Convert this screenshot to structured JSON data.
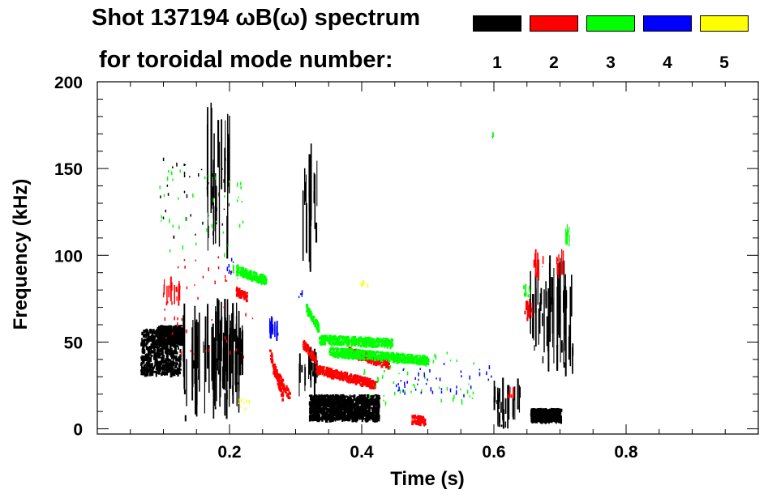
{
  "header": {
    "title_line1": "Shot 137194 ωB(ω) spectrum",
    "title_line2": "for toroidal mode number:"
  },
  "legend": [
    {
      "mode": "1",
      "color": "#000000"
    },
    {
      "mode": "2",
      "color": "#ff0000"
    },
    {
      "mode": "3",
      "color": "#00ff00"
    },
    {
      "mode": "4",
      "color": "#0000ff"
    },
    {
      "mode": "5",
      "color": "#ffff00"
    }
  ],
  "chart_data": {
    "type": "scatter",
    "title": "Shot 137194 ωB(ω) spectrum for toroidal mode number: 1 2 3 4 5",
    "xlabel": "Time (s)",
    "ylabel": "Frequency (kHz)",
    "xlim": [
      0.0,
      1.0
    ],
    "ylim": [
      -3,
      200
    ],
    "x_ticks": [
      0.2,
      0.4,
      0.6,
      0.8
    ],
    "x_tick_labels": [
      "0.2",
      "0.4",
      "0.6",
      "0.8"
    ],
    "y_ticks": [
      0,
      50,
      100,
      150,
      200
    ],
    "y_tick_labels": [
      "0",
      "50",
      "100",
      "150",
      "200"
    ],
    "legend_placement": "top",
    "series": [
      {
        "name": "n=1",
        "color": "#000000",
        "segments": [
          {
            "kind": "blob",
            "t": [
              0.065,
              0.125
            ],
            "f": [
              32,
              58
            ]
          },
          {
            "kind": "blob",
            "t": [
              0.09,
              0.13
            ],
            "f": [
              50,
              60
            ]
          },
          {
            "kind": "vlines",
            "t": [
              0.13,
              0.215
            ],
            "f": [
              3,
              75
            ]
          },
          {
            "kind": "vlines",
            "t": [
              0.175,
              0.215
            ],
            "f": [
              10,
              80
            ]
          },
          {
            "kind": "vlines",
            "t": [
              0.215,
              0.22
            ],
            "f": [
              30,
              60
            ]
          },
          {
            "kind": "vlines",
            "t": [
              0.165,
              0.2
            ],
            "f": [
              95,
              190
            ]
          },
          {
            "kind": "blob",
            "t": [
              0.32,
              0.425
            ],
            "f": [
              6,
              20
            ]
          },
          {
            "kind": "vlines",
            "t": [
              0.305,
              0.335
            ],
            "f": [
              18,
              48
            ]
          },
          {
            "kind": "vlines",
            "t": [
              0.31,
              0.335
            ],
            "f": [
              90,
              165
            ]
          },
          {
            "kind": "blob",
            "t": [
              0.655,
              0.7
            ],
            "f": [
              5,
              12
            ]
          },
          {
            "kind": "vlines",
            "t": [
              0.655,
              0.72
            ],
            "f": [
              30,
              100
            ]
          },
          {
            "kind": "vlines",
            "t": [
              0.6,
              0.64
            ],
            "f": [
              0,
              30
            ]
          },
          {
            "kind": "scatter",
            "t": [
              0.09,
              0.2
            ],
            "f": [
              110,
              160
            ]
          }
        ]
      },
      {
        "name": "n=2",
        "color": "#ff0000",
        "segments": [
          {
            "kind": "band",
            "t": [
              0.26,
              0.28
            ],
            "f": [
              45,
              18
            ]
          },
          {
            "kind": "band",
            "t": [
              0.265,
              0.29
            ],
            "f": [
              35,
              20
            ]
          },
          {
            "kind": "band",
            "t": [
              0.31,
              0.33
            ],
            "f": [
              50,
              40
            ]
          },
          {
            "kind": "band",
            "t": [
              0.33,
              0.42
            ],
            "f": [
              35,
              26
            ]
          },
          {
            "kind": "band",
            "t": [
              0.38,
              0.44
            ],
            "f": [
              45,
              38
            ]
          },
          {
            "kind": "band",
            "t": [
              0.475,
              0.495
            ],
            "f": [
              6,
              5
            ]
          },
          {
            "kind": "band",
            "t": [
              0.209,
              0.225
            ],
            "f": [
              80,
              77
            ]
          },
          {
            "kind": "vlines",
            "t": [
              0.1,
              0.125
            ],
            "f": [
              70,
              90
            ]
          },
          {
            "kind": "vlines",
            "t": [
              0.645,
              0.66
            ],
            "f": [
              60,
              75
            ]
          },
          {
            "kind": "vlines",
            "t": [
              0.66,
              0.675
            ],
            "f": [
              85,
              105
            ]
          },
          {
            "kind": "vlines",
            "t": [
              0.695,
              0.705
            ],
            "f": [
              85,
              105
            ]
          },
          {
            "kind": "vlines",
            "t": [
              0.62,
              0.63
            ],
            "f": [
              15,
              25
            ]
          },
          {
            "kind": "scatter",
            "t": [
              0.1,
              0.24
            ],
            "f": [
              40,
              100
            ]
          }
        ]
      },
      {
        "name": "n=3",
        "color": "#00ff00",
        "segments": [
          {
            "kind": "band",
            "t": [
              0.21,
              0.255
            ],
            "f": [
              92,
              86
            ]
          },
          {
            "kind": "vlines",
            "t": [
              0.205,
              0.215
            ],
            "f": [
              85,
              95
            ]
          },
          {
            "kind": "band",
            "t": [
              0.315,
              0.335
            ],
            "f": [
              70,
              58
            ]
          },
          {
            "kind": "band",
            "t": [
              0.335,
              0.445
            ],
            "f": [
              52,
              50
            ]
          },
          {
            "kind": "band",
            "t": [
              0.35,
              0.5
            ],
            "f": [
              45,
              40
            ]
          },
          {
            "kind": "vlines",
            "t": [
              0.645,
              0.655
            ],
            "f": [
              75,
              85
            ]
          },
          {
            "kind": "vlines",
            "t": [
              0.705,
              0.715
            ],
            "f": [
              105,
              120
            ]
          },
          {
            "kind": "scatter",
            "t": [
              0.09,
              0.22
            ],
            "f": [
              100,
              150
            ]
          },
          {
            "kind": "scatter",
            "t": [
              0.4,
              0.57
            ],
            "f": [
              15,
              45
            ]
          },
          {
            "kind": "scatter",
            "t": [
              0.595,
              0.6
            ],
            "f": [
              168,
              172
            ]
          }
        ]
      },
      {
        "name": "n=4",
        "color": "#0000ff",
        "segments": [
          {
            "kind": "vlines",
            "t": [
              0.26,
              0.275
            ],
            "f": [
              50,
              65
            ]
          },
          {
            "kind": "vlines",
            "t": [
              0.305,
              0.31
            ],
            "f": [
              75,
              80
            ]
          },
          {
            "kind": "scatter",
            "t": [
              0.19,
              0.205
            ],
            "f": [
              90,
              100
            ]
          },
          {
            "kind": "scatter",
            "t": [
              0.45,
              0.6
            ],
            "f": [
              20,
              40
            ]
          }
        ]
      },
      {
        "name": "n=5",
        "color": "#ffff00",
        "segments": [
          {
            "kind": "scatter",
            "t": [
              0.21,
              0.23
            ],
            "f": [
              12,
              18
            ]
          },
          {
            "kind": "scatter",
            "t": [
              0.395,
              0.41
            ],
            "f": [
              83,
              86
            ]
          }
        ]
      }
    ]
  }
}
